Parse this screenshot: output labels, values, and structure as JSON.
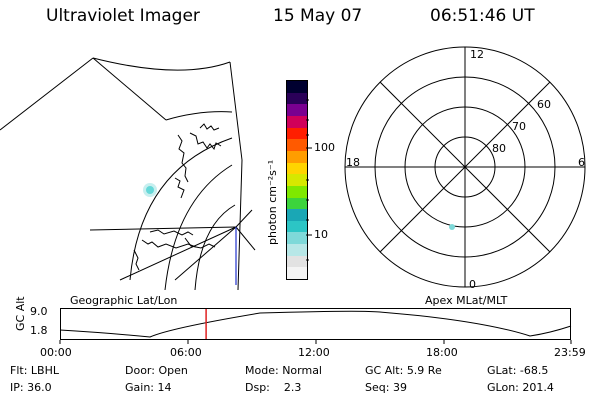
{
  "header": {
    "title": "Ultraviolet Imager",
    "date": "15 May 07",
    "time": "06:51:46 UT"
  },
  "colorbar": {
    "label": "photon cm⁻²s⁻¹",
    "ticks": [
      "100",
      "10"
    ],
    "colors": [
      "#f4f4f4",
      "#e2e2e2",
      "#b7e7e7",
      "#7ed9d9",
      "#2cc5c5",
      "#1aa7b5",
      "#3cd43c",
      "#7fe800",
      "#d6e800",
      "#ffd400",
      "#ff9d00",
      "#ff5a00",
      "#ff1e00",
      "#d0005a",
      "#7a0090",
      "#2a0058",
      "#000030"
    ]
  },
  "left_map": {
    "label": "Geographic Lat/Lon"
  },
  "right_map": {
    "label": "Apex MLat/MLT",
    "mlt": {
      "top": "12",
      "left": "18",
      "right": "6",
      "bottom": "0"
    },
    "mlat": [
      "60",
      "70",
      "80"
    ]
  },
  "timeline": {
    "y_label": "GC Alt",
    "y_ticks": [
      "9.0",
      "1.8"
    ],
    "x_ticks": [
      "00:00",
      "06:00",
      "12:00",
      "18:00",
      "23:59"
    ],
    "current_time_fraction": 0.286
  },
  "info": {
    "filter_label": "Flt:",
    "filter_value": "LBHL",
    "ip_label": "IP:",
    "ip_value": "36.0",
    "door_label": "Door:",
    "door_value": "Open",
    "gain_label": "Gain:",
    "gain_value": "14",
    "mode_label": "Mode:",
    "mode_value": "Normal",
    "dsp_label": "Dsp:",
    "dsp_value": "2.3",
    "gcalt_label": "GC Alt:",
    "gcalt_value": "5.9 Re",
    "seq_label": "Seq:",
    "seq_value": "39",
    "glat_label": "GLat:",
    "glat_value": "-68.5",
    "glon_label": "GLon:",
    "glon_value": "201.4"
  }
}
